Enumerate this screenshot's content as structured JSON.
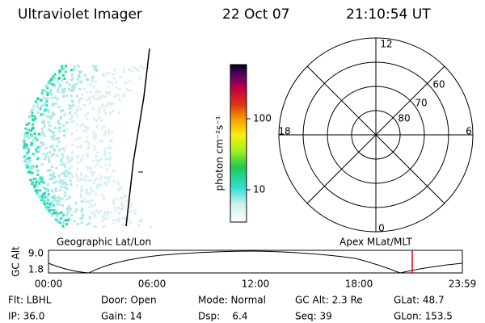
{
  "header": {
    "title": "Ultraviolet Imager",
    "date": "22 Oct 07",
    "time": "21:10:54 UT"
  },
  "colorbar": {
    "label": "photon cm⁻²s⁻¹",
    "ticks": [
      "100",
      "10"
    ]
  },
  "polar": {
    "mlt_labels": {
      "top": "12",
      "right": "6",
      "bottom": "0",
      "left": "18"
    },
    "lat_labels": [
      "60",
      "70",
      "80"
    ]
  },
  "timeline": {
    "left_title": "Geographic Lat/Lon",
    "right_title": "Apex MLat/MLT",
    "axis_label": "GC Alt",
    "y_labels": [
      "9.0",
      "1.8"
    ],
    "x_labels": [
      "00:00",
      "06:00",
      "12:00",
      "18:00",
      "23:59"
    ]
  },
  "footer": {
    "rows": [
      [
        "Flt: LBHL",
        "Door: Open",
        "Mode: Normal",
        "GC Alt: 2.3 Re",
        "GLat: 48.7"
      ],
      [
        "IP: 36.0",
        "Gain: 14",
        "Dsp:    6.4",
        "Seq: 39",
        "GLon: 153.5"
      ]
    ]
  }
}
